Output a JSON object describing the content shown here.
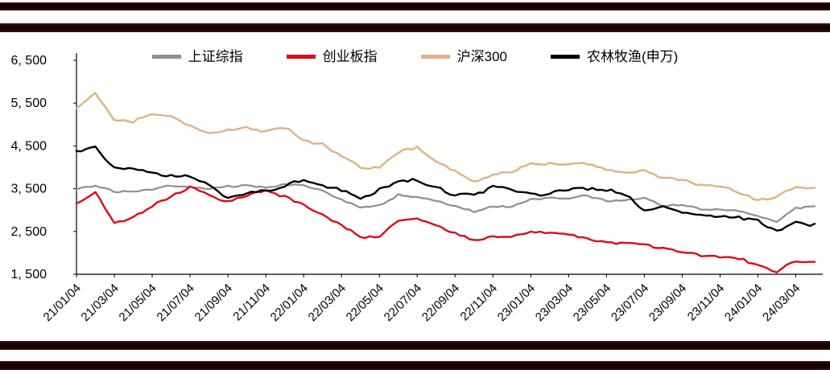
{
  "colors": {
    "axis": "#000000",
    "stripe": "#140303",
    "stripe_edge": "#4a0b0b",
    "background": "#ffffff"
  },
  "chart_data": {
    "type": "line",
    "title": "",
    "xlabel": "",
    "ylabel": "",
    "grid": false,
    "legend_position": "top",
    "ylim": [
      1500,
      6500
    ],
    "y_tick_step": 1000,
    "y_tick_labels": [
      "1, 500",
      "2, 500",
      "3, 500",
      "4, 500",
      "5, 500",
      "6, 500"
    ],
    "x_tick_labels": [
      "21/01/04",
      "21/03/04",
      "21/05/04",
      "21/07/04",
      "21/09/04",
      "21/11/04",
      "22/01/04",
      "22/03/04",
      "22/05/04",
      "22/07/04",
      "22/09/04",
      "22/11/04",
      "23/01/04",
      "23/03/04",
      "23/05/04",
      "23/07/04",
      "23/09/04",
      "23/11/04",
      "24/01/04",
      "24/03/04"
    ],
    "x_unit": "month",
    "series": [
      {
        "name": "上证综指",
        "slug": "sse-composite",
        "color": "#8f8f8f",
        "values": [
          3500,
          3560,
          3450,
          3430,
          3480,
          3590,
          3540,
          3500,
          3570,
          3560,
          3520,
          3610,
          3560,
          3460,
          3250,
          3050,
          3120,
          3360,
          3280,
          3230,
          3080,
          2950,
          3100,
          3080,
          3250,
          3290,
          3270,
          3330,
          3230,
          3210,
          3280,
          3120,
          3110,
          3020,
          3030,
          2970,
          2850,
          2740,
          3030,
          3090
        ]
      },
      {
        "name": "创业板指",
        "slug": "chinext",
        "color": "#dd0a18",
        "values": [
          3120,
          3420,
          2720,
          2800,
          3100,
          3350,
          3520,
          3360,
          3210,
          3320,
          3470,
          3320,
          3100,
          2900,
          2650,
          2350,
          2400,
          2760,
          2800,
          2680,
          2450,
          2280,
          2400,
          2350,
          2500,
          2480,
          2400,
          2330,
          2250,
          2210,
          2230,
          2100,
          2010,
          1960,
          1900,
          1860,
          1720,
          1560,
          1810,
          1790
        ]
      },
      {
        "name": "沪深300",
        "slug": "csi-300",
        "color": "#ddb384",
        "values": [
          5350,
          5750,
          5100,
          5050,
          5250,
          5200,
          4950,
          4820,
          4870,
          4900,
          4850,
          4940,
          4600,
          4560,
          4250,
          3980,
          4010,
          4350,
          4450,
          4150,
          3900,
          3650,
          3850,
          3870,
          4100,
          4100,
          4050,
          4100,
          3950,
          3850,
          3950,
          3750,
          3690,
          3600,
          3550,
          3400,
          3250,
          3300,
          3550,
          3520
        ]
      },
      {
        "name": "农林牧渔(申万)",
        "slug": "agriculture-sw",
        "color": "#000000",
        "values": [
          4350,
          4480,
          4000,
          3950,
          3900,
          3820,
          3750,
          3600,
          3280,
          3380,
          3480,
          3550,
          3700,
          3600,
          3450,
          3250,
          3500,
          3650,
          3700,
          3550,
          3320,
          3380,
          3550,
          3450,
          3400,
          3380,
          3450,
          3520,
          3480,
          3350,
          3000,
          3050,
          2950,
          2880,
          2850,
          2820,
          2780,
          2480,
          2700,
          2680
        ]
      }
    ]
  }
}
